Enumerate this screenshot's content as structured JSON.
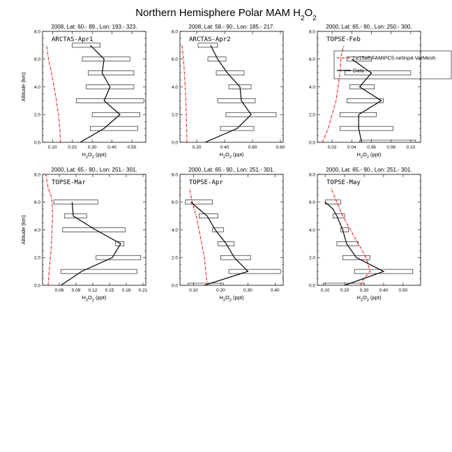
{
  "figure": {
    "title_main": "Northern Hemisphere Polar MAM H",
    "title_sub": "2",
    "title_main2": "O",
    "title_sub2": "2",
    "xlabel_main": "H",
    "xlabel_sub1": "2",
    "xlabel_mid": "O",
    "xlabel_sub2": "2",
    "xlabel_unit": " (ppt)",
    "ylabel": "Altitude (km)",
    "colors": {
      "model": "#e8191b",
      "data": "#000000",
      "box": "#000000"
    }
  },
  "chart_data": [
    {
      "type": "line",
      "header": "2008, Lat:  60.- 89., Lon: 193.- 323.",
      "case_label": "ARCTAS-Apr1",
      "xlim": [
        0.05,
        0.57
      ],
      "xticks": [
        0.1,
        0.2,
        0.3,
        0.4,
        0.5
      ],
      "xticklabels": [
        "0.10",
        "0.20",
        "0.30",
        "0.40",
        "0.50"
      ],
      "ylim": [
        0,
        8
      ],
      "yticks": [
        0,
        2,
        4,
        6,
        8
      ],
      "yticklabels": [
        "0.0",
        "2.0",
        "4.0",
        "6.0",
        "8.0"
      ],
      "model": {
        "x": [
          0.14,
          0.137,
          0.13,
          0.12,
          0.108,
          0.095,
          0.08,
          0.07
        ],
        "y": [
          0.0,
          1.0,
          2.0,
          3.0,
          4.0,
          5.0,
          6.0,
          7.0
        ]
      },
      "data": {
        "x": [
          0.24,
          0.36,
          0.44,
          0.36,
          0.39,
          0.35,
          0.36,
          0.29
        ],
        "y": [
          0.0,
          1.0,
          2.0,
          3.0,
          4.0,
          5.0,
          6.0,
          7.0
        ]
      },
      "boxes": [
        {
          "y": 1.0,
          "x0": 0.29,
          "x1": 0.53
        },
        {
          "y": 2.0,
          "x0": 0.3,
          "x1": 0.54
        },
        {
          "y": 3.0,
          "x0": 0.22,
          "x1": 0.56
        },
        {
          "y": 4.0,
          "x0": 0.27,
          "x1": 0.51
        },
        {
          "y": 5.0,
          "x0": 0.28,
          "x1": 0.51
        },
        {
          "y": 6.0,
          "x0": 0.25,
          "x1": 0.49
        },
        {
          "y": 7.0,
          "x0": 0.2,
          "x1": 0.34
        }
      ],
      "legend": null
    },
    {
      "type": "line",
      "header": "2008, Lat:  58.- 90., Lon: 185.- 217.",
      "case_label": "ARCTAS-Apr2",
      "xlim": [
        0.08,
        0.82
      ],
      "xticks": [
        0.2,
        0.4,
        0.6,
        0.8
      ],
      "xticklabels": [
        "0.20",
        "0.40",
        "0.60",
        "0.80"
      ],
      "ylim": [
        0,
        8
      ],
      "yticks": [
        0,
        2,
        4,
        6,
        8
      ],
      "yticklabels": [
        "0.0",
        "2.0",
        "4.0",
        "6.0",
        "8.0"
      ],
      "model": {
        "x": [
          0.13,
          0.128,
          0.125,
          0.122,
          0.118,
          0.112,
          0.105,
          0.095
        ],
        "y": [
          0.0,
          1.0,
          2.0,
          3.0,
          4.0,
          5.0,
          6.0,
          7.0
        ]
      },
      "data": {
        "x": [
          0.26,
          0.49,
          0.59,
          0.52,
          0.51,
          0.42,
          0.35,
          0.3
        ],
        "y": [
          0.0,
          1.0,
          2.0,
          3.0,
          4.0,
          5.0,
          6.0,
          7.0
        ]
      },
      "boxes": [
        {
          "y": 1.0,
          "x0": 0.37,
          "x1": 0.61
        },
        {
          "y": 2.0,
          "x0": 0.41,
          "x1": 0.77
        },
        {
          "y": 3.0,
          "x0": 0.35,
          "x1": 0.62
        },
        {
          "y": 4.0,
          "x0": 0.43,
          "x1": 0.59
        },
        {
          "y": 5.0,
          "x0": 0.34,
          "x1": 0.54
        },
        {
          "y": 6.0,
          "x0": 0.28,
          "x1": 0.41
        },
        {
          "y": 7.0,
          "x0": 0.21,
          "x1": 0.35
        }
      ],
      "legend": null
    },
    {
      "type": "line",
      "header": "2000, Lat: 65.- 90., Lon: 250.- 300.",
      "case_label": "TOPSE-Feb",
      "xlim": [
        0.005,
        0.11
      ],
      "xticks": [
        0.02,
        0.04,
        0.06,
        0.08,
        0.1
      ],
      "xticklabels": [
        "0.02",
        "0.04",
        "0.06",
        "0.08",
        "0.10"
      ],
      "ylim": [
        0,
        8
      ],
      "yticks": [
        0,
        2,
        4,
        6,
        8
      ],
      "yticklabels": [
        "0.0",
        "2.0",
        "4.0",
        "6.0",
        "8.0"
      ],
      "model": {
        "x": [
          0.01,
          0.016,
          0.02,
          0.024,
          0.026,
          0.028,
          0.029,
          0.03,
          0.032
        ],
        "y": [
          0.0,
          1.0,
          2.0,
          3.0,
          4.0,
          5.0,
          6.0,
          6.5,
          7.0
        ]
      },
      "data": {
        "x": [
          0.05,
          0.047,
          0.047,
          0.07,
          0.048,
          0.06,
          0.04
        ],
        "y": [
          0.0,
          1.0,
          2.0,
          3.0,
          4.0,
          5.0,
          6.0
        ]
      },
      "boxes": [
        {
          "y": 0.0,
          "x0": 0.048,
          "x1": 0.105
        },
        {
          "y": 1.0,
          "x0": 0.028,
          "x1": 0.082
        },
        {
          "y": 2.0,
          "x0": 0.028,
          "x1": 0.065
        },
        {
          "y": 3.0,
          "x0": 0.035,
          "x1": 0.072
        },
        {
          "y": 4.0,
          "x0": 0.038,
          "x1": 0.063
        },
        {
          "y": 5.0,
          "x0": 0.033,
          "x1": 0.1
        },
        {
          "y": 6.0,
          "x0": 0.035,
          "x1": 0.06
        }
      ],
      "legend": {
        "model_label": "f.e15a6.FAMIPC5.ne0np4-VarMesh",
        "data_label": "Data"
      }
    },
    {
      "type": "line",
      "header": "2000, Lat: 65.- 90., Lon: 251.- 301.",
      "case_label": "TOPSE-Mar",
      "xlim": [
        0.03,
        0.215
      ],
      "xticks": [
        0.06,
        0.09,
        0.12,
        0.15,
        0.18,
        0.21
      ],
      "xticklabels": [
        "0.06",
        "0.09",
        "0.12",
        "0.15",
        "0.18",
        "0.21"
      ],
      "ylim": [
        0,
        8
      ],
      "yticks": [
        0,
        2,
        4,
        6,
        8
      ],
      "yticklabels": [
        "0.0",
        "2.0",
        "4.0",
        "6.0",
        "8.0"
      ],
      "model": {
        "x": [
          0.04,
          0.042,
          0.044,
          0.046,
          0.047,
          0.048,
          0.047,
          0.045,
          0.04,
          0.036
        ],
        "y": [
          0.0,
          1.0,
          2.0,
          3.0,
          4.0,
          5.0,
          6.0,
          6.5,
          7.0,
          8.0
        ]
      },
      "data": {
        "x": [
          0.063,
          0.1,
          0.155,
          0.17,
          0.125,
          0.085,
          0.083
        ],
        "y": [
          0.0,
          1.0,
          2.0,
          3.0,
          4.0,
          5.0,
          6.0
        ]
      },
      "boxes": [
        {
          "y": 1.0,
          "x0": 0.063,
          "x1": 0.199
        },
        {
          "y": 2.0,
          "x0": 0.126,
          "x1": 0.206
        },
        {
          "y": 3.0,
          "x0": 0.161,
          "x1": 0.176
        },
        {
          "y": 4.0,
          "x0": 0.066,
          "x1": 0.178
        },
        {
          "y": 5.0,
          "x0": 0.069,
          "x1": 0.109
        },
        {
          "y": 6.0,
          "x0": 0.05,
          "x1": 0.129
        }
      ],
      "legend": null
    },
    {
      "type": "line",
      "header": "2000, Lat: 65.- 90., Lon: 251.- 301.",
      "case_label": "TOPSE-Apr",
      "xlim": [
        0.05,
        0.43
      ],
      "xticks": [
        0.1,
        0.2,
        0.3,
        0.4
      ],
      "xticklabels": [
        "0.10",
        "0.20",
        "0.30",
        "0.40"
      ],
      "ylim": [
        0,
        8
      ],
      "yticks": [
        0,
        2,
        4,
        6,
        8
      ],
      "yticklabels": [
        "0.0",
        "2.0",
        "4.0",
        "6.0",
        "8.0"
      ],
      "model": {
        "x": [
          0.15,
          0.145,
          0.14,
          0.13,
          0.12,
          0.11,
          0.095,
          0.085
        ],
        "y": [
          0.0,
          1.0,
          2.0,
          3.0,
          4.0,
          5.0,
          6.0,
          7.0
        ]
      },
      "data": {
        "x": [
          0.14,
          0.3,
          0.25,
          0.22,
          0.18,
          0.15,
          0.09
        ],
        "y": [
          0.0,
          1.0,
          2.0,
          3.0,
          4.0,
          5.0,
          6.0
        ]
      },
      "boxes": [
        {
          "y": 0.0,
          "x0": 0.08,
          "x1": 0.21
        },
        {
          "y": 1.0,
          "x0": 0.23,
          "x1": 0.42
        },
        {
          "y": 2.0,
          "x0": 0.2,
          "x1": 0.31
        },
        {
          "y": 3.0,
          "x0": 0.19,
          "x1": 0.25
        },
        {
          "y": 4.0,
          "x0": 0.17,
          "x1": 0.21
        },
        {
          "y": 5.0,
          "x0": 0.12,
          "x1": 0.19
        },
        {
          "y": 6.0,
          "x0": 0.07,
          "x1": 0.17
        }
      ],
      "legend": null
    },
    {
      "type": "line",
      "header": "2000, Lat: 65.- 90., Lon: 251.- 301.",
      "case_label": "TOPSE-May",
      "xlim": [
        0.06,
        0.59
      ],
      "xticks": [
        0.1,
        0.2,
        0.3,
        0.4,
        0.5
      ],
      "xticklabels": [
        "0.10",
        "0.20",
        "0.30",
        "0.40",
        "0.50"
      ],
      "ylim": [
        0,
        8
      ],
      "yticks": [
        0,
        2,
        4,
        6,
        8
      ],
      "yticklabels": [
        "0.0",
        "2.0",
        "4.0",
        "6.0",
        "8.0"
      ],
      "model": {
        "x": [
          0.28,
          0.3,
          0.33,
          0.31,
          0.27,
          0.23,
          0.19,
          0.16,
          0.13
        ],
        "y": [
          0.0,
          0.5,
          1.0,
          2.0,
          3.0,
          4.0,
          5.0,
          6.0,
          7.0
        ]
      },
      "data": {
        "x": [
          0.2,
          0.4,
          0.26,
          0.21,
          0.19,
          0.16,
          0.14,
          0.1
        ],
        "y": [
          0.0,
          1.0,
          2.0,
          3.0,
          4.0,
          5.0,
          5.5,
          6.0
        ]
      },
      "boxes": [
        {
          "y": 0.0,
          "x0": 0.09,
          "x1": 0.3
        },
        {
          "y": 1.0,
          "x0": 0.25,
          "x1": 0.55
        },
        {
          "y": 2.0,
          "x0": 0.19,
          "x1": 0.33
        },
        {
          "y": 3.0,
          "x0": 0.16,
          "x1": 0.27
        },
        {
          "y": 4.0,
          "x0": 0.18,
          "x1": 0.22
        },
        {
          "y": 5.0,
          "x0": 0.14,
          "x1": 0.2
        },
        {
          "y": 6.0,
          "x0": 0.1,
          "x1": 0.18
        }
      ],
      "legend": null
    }
  ]
}
